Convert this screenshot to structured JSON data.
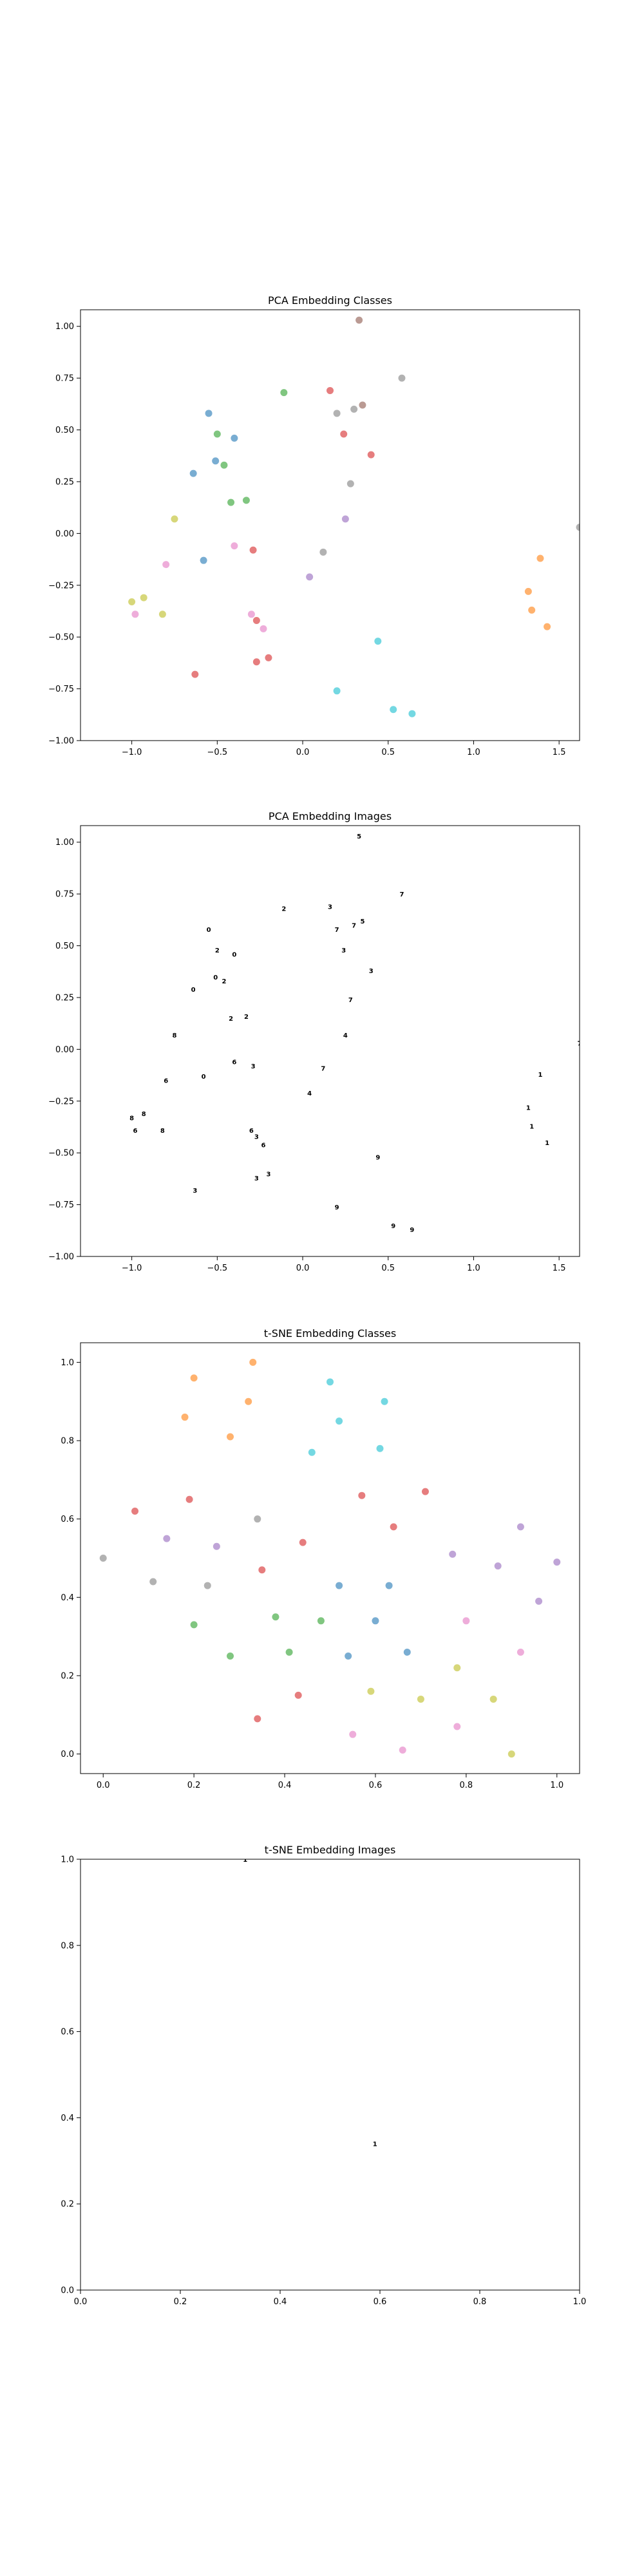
{
  "class_colors": [
    "#1f77b4",
    "#ff7f0e",
    "#2ca02c",
    "#d62728",
    "#9467bd",
    "#8c564b",
    "#e377c2",
    "#7f7f7f",
    "#bcbd22",
    "#17becf"
  ],
  "chart_data": [
    {
      "type": "scatter",
      "title": "PCA Embedding Classes",
      "xlim": [
        -1.3,
        1.62
      ],
      "ylim": [
        -1.0,
        1.08
      ],
      "xticks": [
        -1.0,
        -0.5,
        0.0,
        0.5,
        1.0,
        1.5
      ],
      "yticks": [
        -1.0,
        -0.75,
        -0.5,
        -0.25,
        0.0,
        0.25,
        0.5,
        0.75,
        1.0
      ],
      "xticklabels": [
        "−1.0",
        "−0.5",
        "0.0",
        "0.5",
        "1.0",
        "1.5"
      ],
      "yticklabels": [
        "−1.00",
        "−0.75",
        "−0.50",
        "−0.25",
        "0.00",
        "0.25",
        "0.50",
        "0.75",
        "1.00"
      ],
      "marker": "point",
      "points": [
        {
          "x": -0.55,
          "y": 0.58,
          "c": 0
        },
        {
          "x": -0.4,
          "y": 0.46,
          "c": 0
        },
        {
          "x": -0.51,
          "y": 0.35,
          "c": 0
        },
        {
          "x": -0.64,
          "y": 0.29,
          "c": 0
        },
        {
          "x": -0.58,
          "y": -0.13,
          "c": 0
        },
        {
          "x": 1.39,
          "y": -0.12,
          "c": 1
        },
        {
          "x": 1.32,
          "y": -0.28,
          "c": 1
        },
        {
          "x": 1.34,
          "y": -0.37,
          "c": 1
        },
        {
          "x": 1.43,
          "y": -0.45,
          "c": 1
        },
        {
          "x": -0.11,
          "y": 0.68,
          "c": 2
        },
        {
          "x": -0.5,
          "y": 0.48,
          "c": 2
        },
        {
          "x": -0.46,
          "y": 0.33,
          "c": 2
        },
        {
          "x": -0.42,
          "y": 0.15,
          "c": 2
        },
        {
          "x": -0.33,
          "y": 0.16,
          "c": 2
        },
        {
          "x": 0.16,
          "y": 0.69,
          "c": 3
        },
        {
          "x": 0.24,
          "y": 0.48,
          "c": 3
        },
        {
          "x": 0.4,
          "y": 0.38,
          "c": 3
        },
        {
          "x": -0.29,
          "y": -0.08,
          "c": 3
        },
        {
          "x": -0.27,
          "y": -0.42,
          "c": 3
        },
        {
          "x": -0.27,
          "y": -0.62,
          "c": 3
        },
        {
          "x": -0.2,
          "y": -0.6,
          "c": 3
        },
        {
          "x": -0.63,
          "y": -0.68,
          "c": 3
        },
        {
          "x": 0.04,
          "y": -0.21,
          "c": 4
        },
        {
          "x": 0.25,
          "y": 0.07,
          "c": 4
        },
        {
          "x": 0.33,
          "y": 1.03,
          "c": 5
        },
        {
          "x": 0.35,
          "y": 0.62,
          "c": 5
        },
        {
          "x": -0.8,
          "y": -0.15,
          "c": 6
        },
        {
          "x": -0.4,
          "y": -0.06,
          "c": 6
        },
        {
          "x": -0.3,
          "y": -0.39,
          "c": 6
        },
        {
          "x": -0.23,
          "y": -0.46,
          "c": 6
        },
        {
          "x": -0.98,
          "y": -0.39,
          "c": 6
        },
        {
          "x": 0.2,
          "y": 0.58,
          "c": 7
        },
        {
          "x": 0.3,
          "y": 0.6,
          "c": 7
        },
        {
          "x": 0.58,
          "y": 0.75,
          "c": 7
        },
        {
          "x": 0.28,
          "y": 0.24,
          "c": 7
        },
        {
          "x": 0.12,
          "y": -0.09,
          "c": 7
        },
        {
          "x": 1.62,
          "y": 0.03,
          "c": 7
        },
        {
          "x": -0.75,
          "y": 0.07,
          "c": 8
        },
        {
          "x": -1.0,
          "y": -0.33,
          "c": 8
        },
        {
          "x": -0.93,
          "y": -0.31,
          "c": 8
        },
        {
          "x": -0.82,
          "y": -0.39,
          "c": 8
        },
        {
          "x": 0.44,
          "y": -0.52,
          "c": 9
        },
        {
          "x": 0.53,
          "y": -0.85,
          "c": 9
        },
        {
          "x": 0.64,
          "y": -0.87,
          "c": 9
        },
        {
          "x": 0.2,
          "y": -0.76,
          "c": 9
        }
      ]
    },
    {
      "type": "scatter",
      "title": "PCA Embedding Images",
      "xlim": [
        -1.3,
        1.62
      ],
      "ylim": [
        -1.0,
        1.08
      ],
      "xticks": [
        -1.0,
        -0.5,
        0.0,
        0.5,
        1.0,
        1.5
      ],
      "yticks": [
        -1.0,
        -0.75,
        -0.5,
        -0.25,
        0.0,
        0.25,
        0.5,
        0.75,
        1.0
      ],
      "xticklabels": [
        "−1.0",
        "−0.5",
        "0.0",
        "0.5",
        "1.0",
        "1.5"
      ],
      "yticklabels": [
        "−1.00",
        "−0.75",
        "−0.50",
        "−0.25",
        "0.00",
        "0.25",
        "0.50",
        "0.75",
        "1.00"
      ],
      "marker": "glyph",
      "glyphs": [
        "0",
        "1",
        "2",
        "3",
        "4",
        "5",
        "6",
        "7",
        "8",
        "9"
      ],
      "points": [
        {
          "x": -0.55,
          "y": 0.58,
          "c": 0
        },
        {
          "x": -0.4,
          "y": 0.46,
          "c": 0
        },
        {
          "x": -0.51,
          "y": 0.35,
          "c": 0
        },
        {
          "x": -0.64,
          "y": 0.29,
          "c": 0
        },
        {
          "x": -0.58,
          "y": -0.13,
          "c": 0
        },
        {
          "x": 1.39,
          "y": -0.12,
          "c": 1
        },
        {
          "x": 1.32,
          "y": -0.28,
          "c": 1
        },
        {
          "x": 1.34,
          "y": -0.37,
          "c": 1
        },
        {
          "x": 1.43,
          "y": -0.45,
          "c": 1
        },
        {
          "x": -0.11,
          "y": 0.68,
          "c": 2
        },
        {
          "x": -0.5,
          "y": 0.48,
          "c": 2
        },
        {
          "x": -0.46,
          "y": 0.33,
          "c": 2
        },
        {
          "x": -0.42,
          "y": 0.15,
          "c": 2
        },
        {
          "x": -0.33,
          "y": 0.16,
          "c": 2
        },
        {
          "x": 0.16,
          "y": 0.69,
          "c": 3
        },
        {
          "x": 0.24,
          "y": 0.48,
          "c": 3
        },
        {
          "x": 0.4,
          "y": 0.38,
          "c": 3
        },
        {
          "x": -0.29,
          "y": -0.08,
          "c": 3
        },
        {
          "x": -0.27,
          "y": -0.42,
          "c": 3
        },
        {
          "x": -0.27,
          "y": -0.62,
          "c": 3
        },
        {
          "x": -0.2,
          "y": -0.6,
          "c": 3
        },
        {
          "x": -0.63,
          "y": -0.68,
          "c": 3
        },
        {
          "x": 0.04,
          "y": -0.21,
          "c": 4
        },
        {
          "x": 0.25,
          "y": 0.07,
          "c": 4
        },
        {
          "x": 0.33,
          "y": 1.03,
          "c": 5
        },
        {
          "x": 0.35,
          "y": 0.62,
          "c": 5
        },
        {
          "x": -0.8,
          "y": -0.15,
          "c": 6
        },
        {
          "x": -0.4,
          "y": -0.06,
          "c": 6
        },
        {
          "x": -0.3,
          "y": -0.39,
          "c": 6
        },
        {
          "x": -0.23,
          "y": -0.46,
          "c": 6
        },
        {
          "x": -0.98,
          "y": -0.39,
          "c": 6
        },
        {
          "x": 0.2,
          "y": 0.58,
          "c": 7
        },
        {
          "x": 0.3,
          "y": 0.6,
          "c": 7
        },
        {
          "x": 0.58,
          "y": 0.75,
          "c": 7
        },
        {
          "x": 0.28,
          "y": 0.24,
          "c": 7
        },
        {
          "x": 0.12,
          "y": -0.09,
          "c": 7
        },
        {
          "x": 1.62,
          "y": 0.03,
          "c": 7
        },
        {
          "x": -0.75,
          "y": 0.07,
          "c": 8
        },
        {
          "x": -1.0,
          "y": -0.33,
          "c": 8
        },
        {
          "x": -0.93,
          "y": -0.31,
          "c": 8
        },
        {
          "x": -0.82,
          "y": -0.39,
          "c": 8
        },
        {
          "x": 0.44,
          "y": -0.52,
          "c": 9
        },
        {
          "x": 0.53,
          "y": -0.85,
          "c": 9
        },
        {
          "x": 0.64,
          "y": -0.87,
          "c": 9
        },
        {
          "x": 0.2,
          "y": -0.76,
          "c": 9
        }
      ]
    },
    {
      "type": "scatter",
      "title": "t-SNE Embedding Classes",
      "xlim": [
        -0.05,
        1.05
      ],
      "ylim": [
        -0.05,
        1.05
      ],
      "xticks": [
        0.0,
        0.2,
        0.4,
        0.6,
        0.8,
        1.0
      ],
      "yticks": [
        0.0,
        0.2,
        0.4,
        0.6,
        0.8,
        1.0
      ],
      "xticklabels": [
        "0.0",
        "0.2",
        "0.4",
        "0.6",
        "0.8",
        "1.0"
      ],
      "yticklabels": [
        "0.0",
        "0.2",
        "0.4",
        "0.6",
        "0.8",
        "1.0"
      ],
      "marker": "point",
      "points": [
        {
          "x": 0.2,
          "y": 0.96,
          "c": 1
        },
        {
          "x": 0.33,
          "y": 1.0,
          "c": 1
        },
        {
          "x": 0.18,
          "y": 0.86,
          "c": 1
        },
        {
          "x": 0.32,
          "y": 0.9,
          "c": 1
        },
        {
          "x": 0.28,
          "y": 0.81,
          "c": 1
        },
        {
          "x": 0.5,
          "y": 0.95,
          "c": 9
        },
        {
          "x": 0.52,
          "y": 0.85,
          "c": 9
        },
        {
          "x": 0.62,
          "y": 0.9,
          "c": 9
        },
        {
          "x": 0.46,
          "y": 0.77,
          "c": 9
        },
        {
          "x": 0.61,
          "y": 0.78,
          "c": 9
        },
        {
          "x": 0.07,
          "y": 0.62,
          "c": 3
        },
        {
          "x": 0.19,
          "y": 0.65,
          "c": 3
        },
        {
          "x": 0.57,
          "y": 0.66,
          "c": 3
        },
        {
          "x": 0.71,
          "y": 0.67,
          "c": 3
        },
        {
          "x": 0.64,
          "y": 0.58,
          "c": 3
        },
        {
          "x": 0.44,
          "y": 0.54,
          "c": 3
        },
        {
          "x": 0.35,
          "y": 0.47,
          "c": 3
        },
        {
          "x": 0.43,
          "y": 0.15,
          "c": 3
        },
        {
          "x": 0.34,
          "y": 0.09,
          "c": 3
        },
        {
          "x": 0.14,
          "y": 0.55,
          "c": 4
        },
        {
          "x": 0.25,
          "y": 0.53,
          "c": 4
        },
        {
          "x": 0.92,
          "y": 0.58,
          "c": 4
        },
        {
          "x": 0.77,
          "y": 0.51,
          "c": 4
        },
        {
          "x": 0.87,
          "y": 0.48,
          "c": 4
        },
        {
          "x": 1.0,
          "y": 0.49,
          "c": 4
        },
        {
          "x": 0.96,
          "y": 0.39,
          "c": 4
        },
        {
          "x": 0.0,
          "y": 0.5,
          "c": 7
        },
        {
          "x": 0.11,
          "y": 0.44,
          "c": 7
        },
        {
          "x": 0.23,
          "y": 0.43,
          "c": 7
        },
        {
          "x": 0.34,
          "y": 0.6,
          "c": 7
        },
        {
          "x": 0.52,
          "y": 0.43,
          "c": 0
        },
        {
          "x": 0.63,
          "y": 0.43,
          "c": 0
        },
        {
          "x": 0.6,
          "y": 0.34,
          "c": 0
        },
        {
          "x": 0.54,
          "y": 0.25,
          "c": 0
        },
        {
          "x": 0.67,
          "y": 0.26,
          "c": 0
        },
        {
          "x": 0.2,
          "y": 0.33,
          "c": 2
        },
        {
          "x": 0.38,
          "y": 0.35,
          "c": 2
        },
        {
          "x": 0.48,
          "y": 0.34,
          "c": 2
        },
        {
          "x": 0.28,
          "y": 0.25,
          "c": 2
        },
        {
          "x": 0.41,
          "y": 0.26,
          "c": 2
        },
        {
          "x": 0.8,
          "y": 0.34,
          "c": 6
        },
        {
          "x": 0.92,
          "y": 0.26,
          "c": 6
        },
        {
          "x": 0.78,
          "y": 0.07,
          "c": 6
        },
        {
          "x": 0.55,
          "y": 0.05,
          "c": 6
        },
        {
          "x": 0.66,
          "y": 0.01,
          "c": 6
        },
        {
          "x": 0.59,
          "y": 0.16,
          "c": 8
        },
        {
          "x": 0.7,
          "y": 0.14,
          "c": 8
        },
        {
          "x": 0.78,
          "y": 0.22,
          "c": 8
        },
        {
          "x": 0.86,
          "y": 0.14,
          "c": 8
        },
        {
          "x": 0.9,
          "y": 0.0,
          "c": 8
        }
      ]
    },
    {
      "type": "scatter",
      "title": "t-SNE Embedding Images",
      "xlim": [
        0.0,
        1.0
      ],
      "ylim": [
        0.0,
        1.0
      ],
      "xticks": [
        0.0,
        0.2,
        0.4,
        0.6,
        0.8,
        1.0
      ],
      "yticks": [
        0.0,
        0.2,
        0.4,
        0.6,
        0.8,
        1.0
      ],
      "xticklabels": [
        "0.0",
        "0.2",
        "0.4",
        "0.6",
        "0.8",
        "1.0"
      ],
      "yticklabels": [
        "0.0",
        "0.2",
        "0.4",
        "0.6",
        "0.8",
        "1.0"
      ],
      "marker": "glyph",
      "glyphs": [
        "0",
        "1",
        "2",
        "3",
        "4",
        "5",
        "6",
        "7",
        "8",
        "9"
      ],
      "points": [
        {
          "x": 0.33,
          "y": 1.0,
          "c": 1
        },
        {
          "x": 0.59,
          "y": 0.34,
          "c": 1
        }
      ]
    }
  ]
}
